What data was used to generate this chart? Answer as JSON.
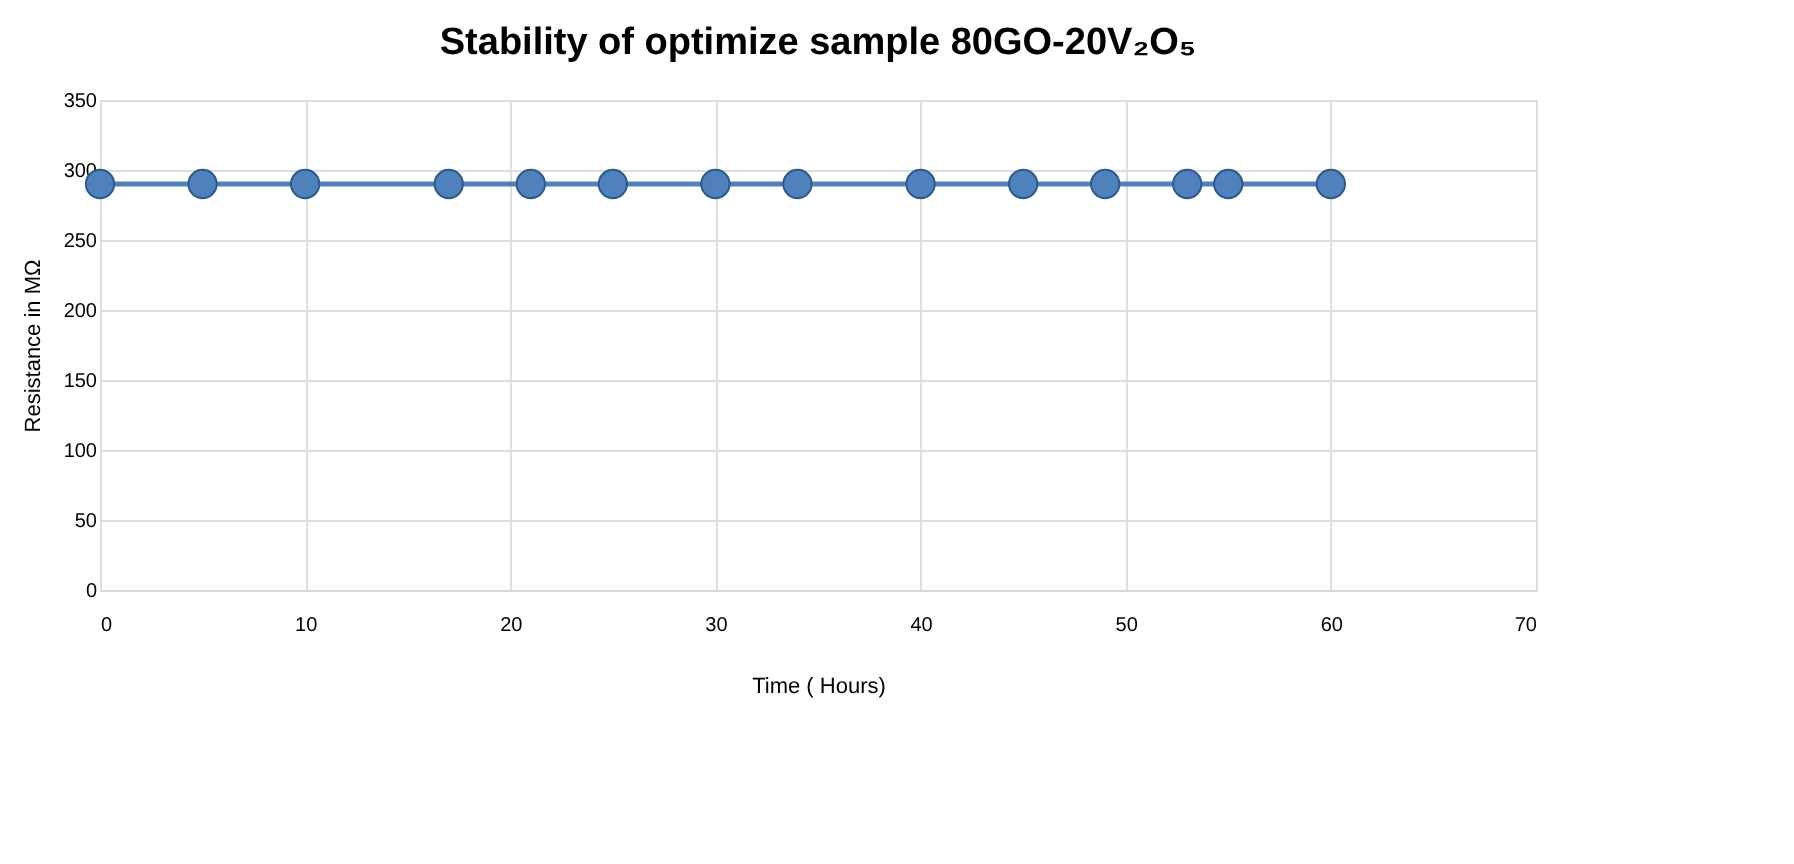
{
  "chart_data": {
    "type": "line",
    "title": "Stability of optimize sample 80GO-20V₂O₅",
    "xlabel": "Time ( Hours)",
    "ylabel": "Resistance in MΩ",
    "x": [
      0,
      5,
      10,
      17,
      21,
      25,
      30,
      34,
      40,
      45,
      49,
      53,
      55,
      60
    ],
    "series": [
      {
        "color": "#4f81bd",
        "values": [
          290,
          290,
          290,
          290,
          290,
          290,
          290,
          290,
          290,
          290,
          290,
          290,
          290,
          290
        ]
      }
    ],
    "xlim": [
      0,
      70
    ],
    "xticks": [
      0,
      10,
      20,
      30,
      40,
      50,
      60,
      70
    ],
    "ylim": [
      0,
      350
    ],
    "yticks": [
      0,
      50,
      100,
      150,
      200,
      250,
      300,
      350
    ],
    "grid": true,
    "marker": "circle",
    "line_style": "solid"
  }
}
